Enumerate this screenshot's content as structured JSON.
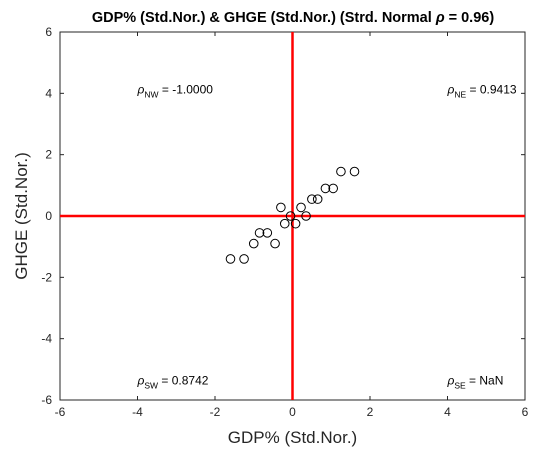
{
  "chart_data": {
    "type": "scatter",
    "title_prefix": "GDP% (Std.Nor.) & GHGE (Std.Nor.) (Strd. Normal ",
    "title_rho": "ρ",
    "title_suffix": " = 0.96)",
    "xlabel": "GDP% (Std.Nor.)",
    "ylabel": "GHGE (Std.Nor.)",
    "xlim": [
      -6,
      6
    ],
    "ylim": [
      -6,
      6
    ],
    "xticks": [
      "-6",
      "-4",
      "-2",
      "0",
      "2",
      "4",
      "6"
    ],
    "yticks": [
      "-6",
      "-4",
      "-2",
      "0",
      "2",
      "4",
      "6"
    ],
    "grid": false,
    "marker": "open-circle",
    "quadrant_line_color": "#ff0000",
    "marker_color": "#000000",
    "points": [
      {
        "x": -1.6,
        "y": -1.4
      },
      {
        "x": -1.25,
        "y": -1.4
      },
      {
        "x": -1.0,
        "y": -0.9
      },
      {
        "x": -0.85,
        "y": -0.55
      },
      {
        "x": -0.65,
        "y": -0.55
      },
      {
        "x": -0.45,
        "y": -0.9
      },
      {
        "x": -0.3,
        "y": 0.28
      },
      {
        "x": -0.2,
        "y": -0.25
      },
      {
        "x": -0.05,
        "y": 0.0
      },
      {
        "x": 0.08,
        "y": -0.25
      },
      {
        "x": 0.22,
        "y": 0.28
      },
      {
        "x": 0.35,
        "y": 0.0
      },
      {
        "x": 0.5,
        "y": 0.55
      },
      {
        "x": 0.65,
        "y": 0.55
      },
      {
        "x": 0.85,
        "y": 0.9
      },
      {
        "x": 1.05,
        "y": 0.9
      },
      {
        "x": 1.25,
        "y": 1.45
      },
      {
        "x": 1.6,
        "y": 1.45
      }
    ],
    "annotations": [
      {
        "id": "nw",
        "x": -4,
        "y": 4,
        "symbol": "ρ",
        "sub": "NW",
        "text": " = -1.0000"
      },
      {
        "id": "ne",
        "x": 4,
        "y": 4,
        "symbol": "ρ",
        "sub": "NE",
        "text": " = 0.9413"
      },
      {
        "id": "sw",
        "x": -4,
        "y": -5.5,
        "symbol": "ρ",
        "sub": "SW",
        "text": " = 0.8742"
      },
      {
        "id": "se",
        "x": 4,
        "y": -5.5,
        "symbol": "ρ",
        "sub": "SE",
        "text": " = NaN"
      }
    ]
  }
}
